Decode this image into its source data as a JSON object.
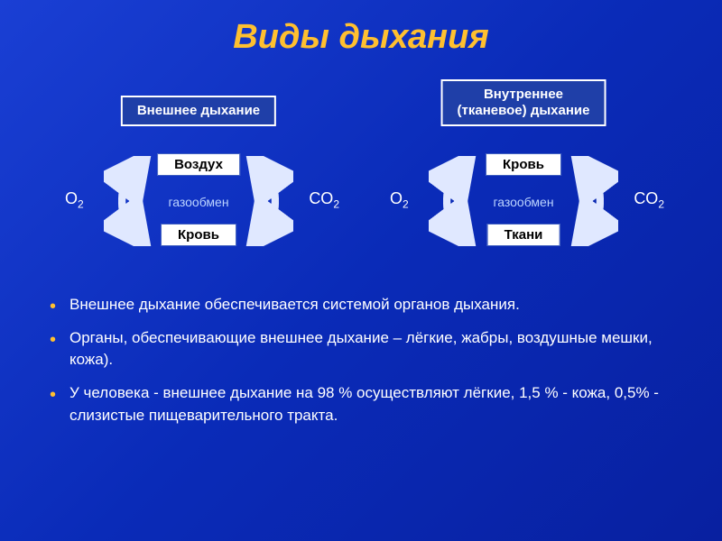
{
  "title": "Виды дыхания",
  "colors": {
    "background_gradient_top": "#1a3fd4",
    "background_gradient_bottom": "#0820a0",
    "title_color": "#ffc030",
    "box_bg": "#1f3fa8",
    "box_border": "#ffffff",
    "node_bg": "#ffffff",
    "node_text": "#000000",
    "arrow_color": "#e0e8ff",
    "label_muted": "#bcd4ff",
    "bullet_marker": "#ffc030",
    "text": "#ffffff"
  },
  "diagrams": [
    {
      "type_label": "Внешнее дыхание",
      "type_lines": 1,
      "top_node": "Воздух",
      "bottom_node": "Кровь",
      "center_label": "газообмен",
      "gas_left": "O",
      "gas_left_sub": "2",
      "gas_right": "CO",
      "gas_right_sub": "2"
    },
    {
      "type_label": "Внутреннее\n(тканевое) дыхание",
      "type_lines": 2,
      "top_node": "Кровь",
      "bottom_node": "Ткани",
      "center_label": "газообмен",
      "gas_left": "O",
      "gas_left_sub": "2",
      "gas_right": "CO",
      "gas_right_sub": "2"
    }
  ],
  "bullets": [
    "Внешнее дыхание обеспечивается системой органов дыхания.",
    "Органы, обеспечивающие внешнее дыхание – лёгкие, жабры, воздушные мешки, кожа).",
    "У человека - внешнее дыхание на 98 % осуществляют лёгкие, 1,5 % - кожа, 0,5% - слизистые пищеварительного тракта."
  ]
}
